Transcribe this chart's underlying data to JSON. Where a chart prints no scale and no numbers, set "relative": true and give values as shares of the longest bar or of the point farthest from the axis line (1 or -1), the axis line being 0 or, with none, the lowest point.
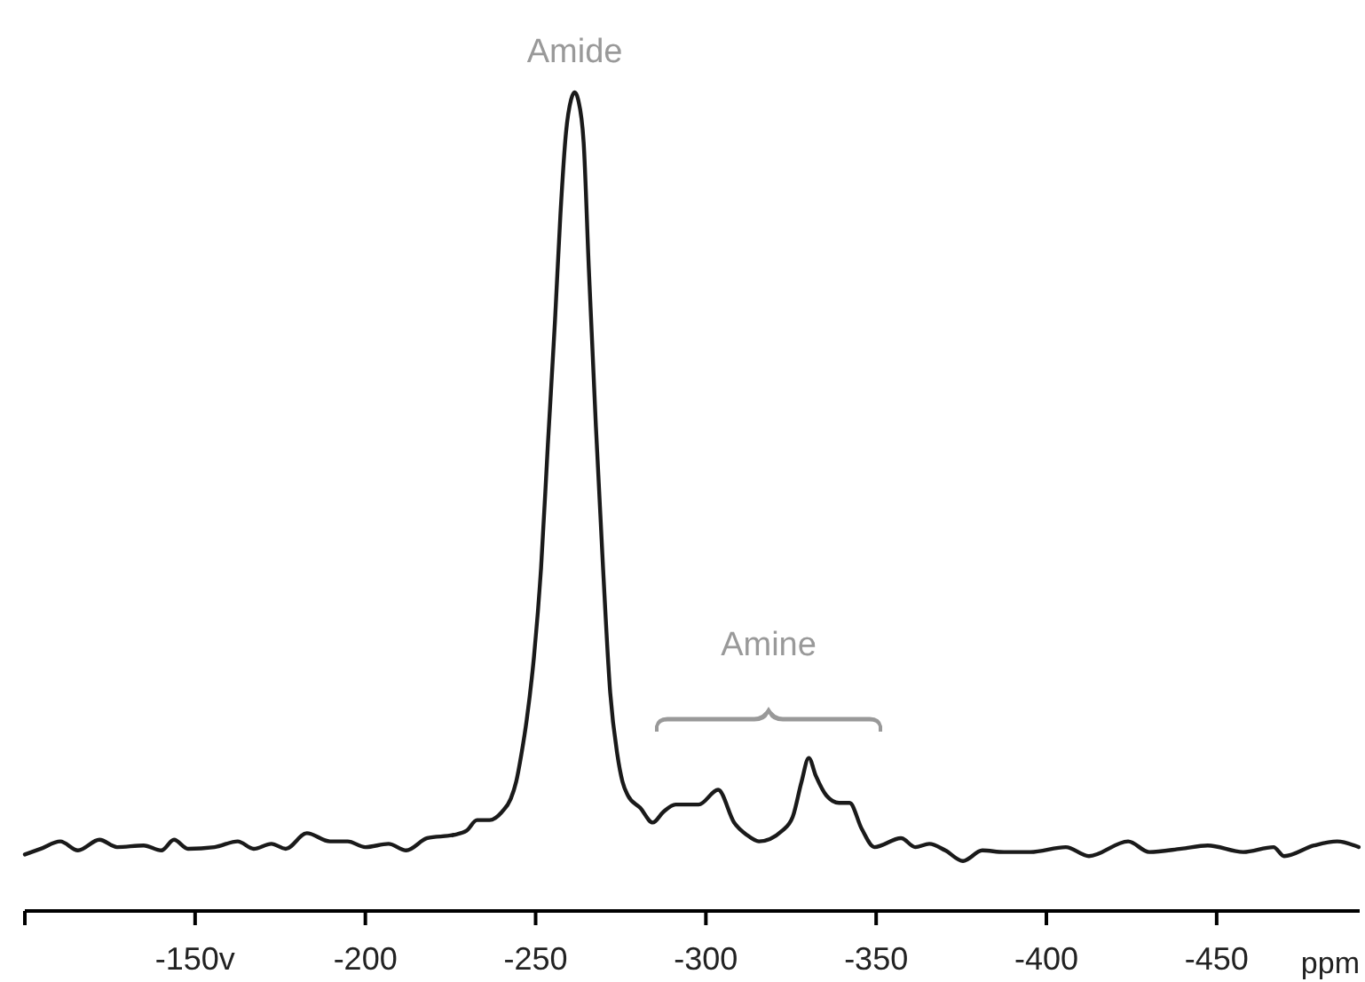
{
  "chart_data": {
    "type": "line",
    "relative": true,
    "xlabel": "ppm",
    "xlim": [
      -100,
      -492
    ],
    "xticks": [
      {
        "value": -100,
        "label": null
      },
      {
        "value": -150,
        "label": "-150v"
      },
      -200,
      -250,
      -300,
      -350,
      -400,
      -450
    ],
    "x": [
      -100.0,
      -104.7,
      -110.4,
      -115.6,
      -121.9,
      -127.1,
      -134.9,
      -140.1,
      -143.8,
      -147.9,
      -155.7,
      -162.5,
      -167.2,
      -172.4,
      -176.6,
      -182.8,
      -189.6,
      -194.8,
      -200.0,
      -206.8,
      -212.0,
      -218.2,
      -226.0,
      -229.7,
      -232.8,
      -236.5,
      -240.1,
      -242.7,
      -244.3,
      -245.8,
      -247.4,
      -249.5,
      -251.6,
      -253.6,
      -255.7,
      -257.3,
      -258.9,
      -260.4,
      -261.5,
      -262.5,
      -264.1,
      -265.6,
      -267.7,
      -269.8,
      -271.9,
      -274.0,
      -275.5,
      -277.1,
      -280.7,
      -284.4,
      -287.5,
      -291.1,
      -297.9,
      -303.6,
      -308.3,
      -312.0,
      -315.6,
      -322.4,
      -325.5,
      -328.1,
      -330.2,
      -332.3,
      -335.4,
      -339.1,
      -342.2,
      -345.8,
      -349.5,
      -357.3,
      -361.5,
      -365.6,
      -370.3,
      -375.5,
      -381.2,
      -387.5,
      -395.3,
      -405.7,
      -412.5,
      -424.0,
      -430.2,
      -439.6,
      -447.4,
      -457.8,
      -466.7,
      -469.8,
      -478.6,
      -485.4,
      -491.7
    ],
    "series": [
      {
        "color": "#1a1a1a",
        "values": [
          0.069,
          0.076,
          0.085,
          0.074,
          0.087,
          0.078,
          0.08,
          0.074,
          0.087,
          0.076,
          0.078,
          0.085,
          0.076,
          0.082,
          0.076,
          0.095,
          0.085,
          0.085,
          0.078,
          0.082,
          0.074,
          0.089,
          0.093,
          0.098,
          0.111,
          0.111,
          0.121,
          0.137,
          0.158,
          0.191,
          0.234,
          0.31,
          0.419,
          0.57,
          0.722,
          0.852,
          0.95,
          0.991,
          1.0,
          0.991,
          0.939,
          0.787,
          0.592,
          0.419,
          0.267,
          0.191,
          0.158,
          0.141,
          0.126,
          0.108,
          0.121,
          0.13,
          0.13,
          0.148,
          0.108,
          0.093,
          0.085,
          0.098,
          0.115,
          0.158,
          0.187,
          0.165,
          0.141,
          0.132,
          0.132,
          0.1,
          0.078,
          0.089,
          0.078,
          0.082,
          0.074,
          0.061,
          0.074,
          0.072,
          0.072,
          0.078,
          0.067,
          0.085,
          0.072,
          0.076,
          0.08,
          0.072,
          0.078,
          0.067,
          0.08,
          0.085,
          0.078
        ]
      }
    ],
    "annotations": [
      {
        "text": "Amide",
        "x": -261.5,
        "y": 1.0
      },
      "Amine"
    ],
    "grid": false
  }
}
